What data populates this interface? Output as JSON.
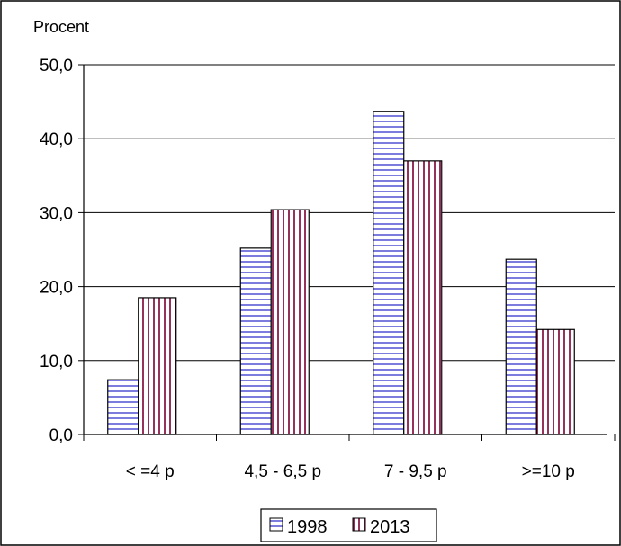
{
  "chart_data": {
    "type": "bar",
    "ylabel": "Procent",
    "categories": [
      "< =4 p",
      "4,5 - 6,5 p",
      "7 - 9,5 p",
      ">=10 p"
    ],
    "series": [
      {
        "name": "1998",
        "values": [
          7.4,
          25.2,
          43.7,
          23.7
        ],
        "color": "#5b5bd6",
        "pattern": "horizontal-lines"
      },
      {
        "name": "2013",
        "values": [
          18.5,
          30.4,
          37.0,
          14.2
        ],
        "color": "#8b1a4a",
        "pattern": "vertical-lines"
      }
    ],
    "ylim": [
      0,
      50
    ],
    "yticks": [
      "0,0",
      "10,0",
      "20,0",
      "30,0",
      "40,0",
      "50,0"
    ],
    "grid": true,
    "legend_position": "bottom"
  }
}
